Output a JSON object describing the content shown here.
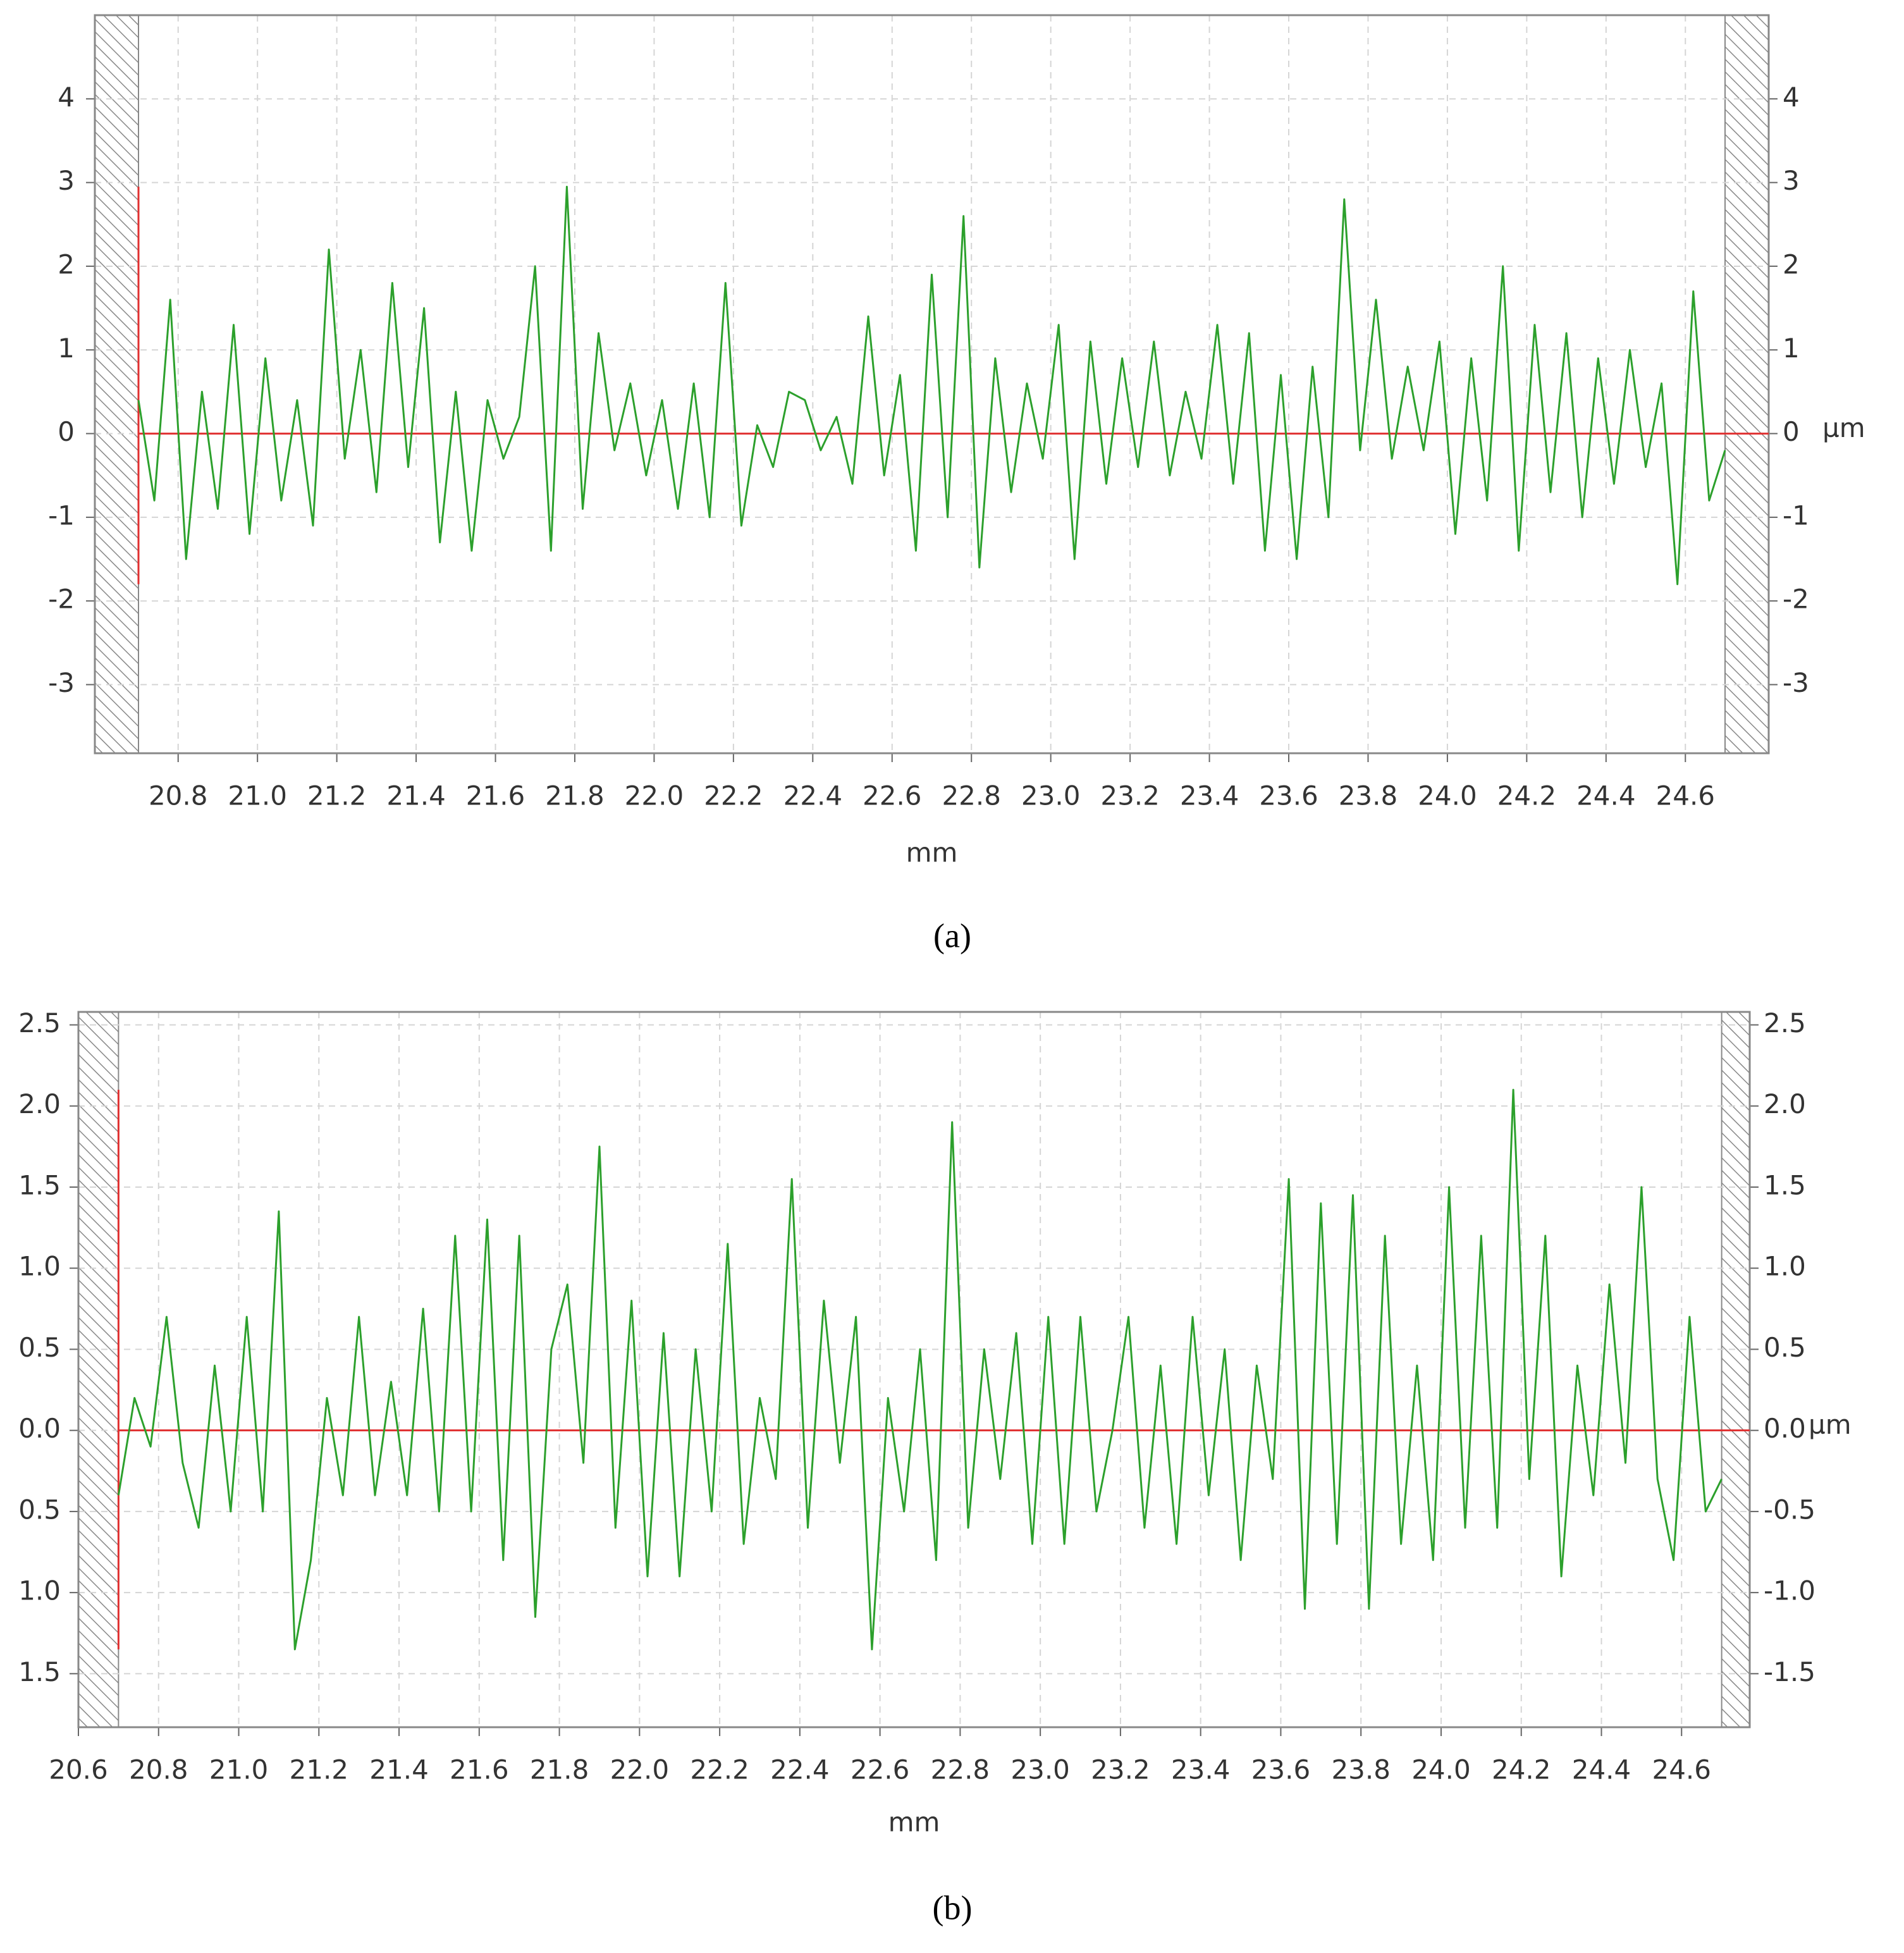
{
  "chart_data": [
    {
      "type": "line",
      "caption": "(a)",
      "xlabel": "mm",
      "y2label": "µm",
      "grid": true,
      "reference_color": "#e03030",
      "xlim": [
        20.59,
        24.81
      ],
      "ylim": [
        -3.82,
        5.0
      ],
      "y2lim": [
        -3.82,
        5.0
      ],
      "xticks": [
        20.8,
        {
          "value": 21,
          "label": "21.0"
        },
        21.2,
        21.4,
        21.6,
        21.8,
        {
          "value": 22,
          "label": "22.0"
        },
        22.2,
        22.4,
        22.6,
        22.8,
        {
          "value": 23,
          "label": "23.0"
        },
        23.2,
        23.4,
        23.6,
        23.8,
        {
          "value": 24,
          "label": "24.0"
        },
        24.2,
        24.4,
        24.6
      ],
      "yticks": [
        -3,
        -2,
        -1,
        0,
        1,
        2,
        3,
        4
      ],
      "y2ticks": [
        -3,
        -2,
        -1,
        0,
        1,
        2,
        3,
        4
      ],
      "x": [
        20.7,
        20.74,
        20.78,
        20.82,
        20.86,
        20.9,
        20.94,
        20.98,
        21.02,
        21.06,
        21.1,
        21.14,
        21.18,
        21.22,
        21.26,
        21.3,
        21.34,
        21.38,
        21.42,
        21.46,
        21.5,
        21.54,
        21.58,
        21.62,
        21.66,
        21.7,
        21.74,
        21.78,
        21.82,
        21.86,
        21.9,
        21.94,
        21.98,
        22.02,
        22.06,
        22.1,
        22.14,
        22.18,
        22.22,
        22.26,
        22.3,
        22.34,
        22.38,
        22.42,
        22.46,
        22.5,
        22.54,
        22.58,
        22.62,
        22.66,
        22.7,
        22.74,
        22.78,
        22.82,
        22.86,
        22.9,
        22.94,
        22.98,
        23.02,
        23.06,
        23.1,
        23.14,
        23.18,
        23.22,
        23.26,
        23.3,
        23.34,
        23.38,
        23.42,
        23.46,
        23.5,
        23.54,
        23.58,
        23.62,
        23.66,
        23.7,
        23.74,
        23.78,
        23.82,
        23.86,
        23.9,
        23.94,
        23.98,
        24.02,
        24.06,
        24.1,
        24.14,
        24.18,
        24.22,
        24.26,
        24.3,
        24.34,
        24.38,
        24.42,
        24.46,
        24.5,
        24.54,
        24.58,
        24.62,
        24.66,
        24.7
      ],
      "series": [
        {
          "color": "#2ca02c",
          "values": [
            0.4,
            -0.8,
            1.6,
            -1.5,
            0.5,
            -0.9,
            1.3,
            -1.2,
            0.9,
            -0.8,
            0.4,
            -1.1,
            2.2,
            -0.3,
            1.0,
            -0.7,
            1.8,
            -0.4,
            1.5,
            -1.3,
            0.5,
            -1.4,
            0.4,
            -0.3,
            0.2,
            2.0,
            -1.4,
            2.95,
            -0.9,
            1.2,
            -0.2,
            0.6,
            -0.5,
            0.4,
            -0.9,
            0.6,
            -1.0,
            1.8,
            -1.1,
            0.1,
            -0.4,
            0.5,
            0.4,
            -0.2,
            0.2,
            -0.6,
            1.4,
            -0.5,
            0.7,
            -1.4,
            1.9,
            -1.0,
            2.6,
            -1.6,
            0.9,
            -0.7,
            0.6,
            -0.3,
            1.3,
            -1.5,
            1.1,
            -0.6,
            0.9,
            -0.4,
            1.1,
            -0.5,
            0.5,
            -0.3,
            1.3,
            -0.6,
            1.2,
            -1.4,
            0.7,
            -1.5,
            0.8,
            -1.0,
            2.8,
            -0.2,
            1.6,
            -0.3,
            0.8,
            -0.2,
            1.1,
            -1.2,
            0.9,
            -0.8,
            2.0,
            -1.4,
            1.3,
            -0.7,
            1.2,
            -1.0,
            0.9,
            -0.6,
            1.0,
            -0.4,
            0.6,
            -1.8,
            1.7,
            -0.8,
            -0.2
          ]
        }
      ]
    },
    {
      "type": "line",
      "caption": "(b)",
      "xlabel": "mm",
      "y2label": "µm",
      "grid": true,
      "reference_color": "#e03030",
      "xlim": [
        20.6,
        24.77
      ],
      "ylim": [
        -1.83,
        2.58
      ],
      "y2lim": [
        -1.83,
        2.58
      ],
      "xticks": [
        20.6,
        20.8,
        {
          "value": 21,
          "label": "21.0"
        },
        21.2,
        21.4,
        21.6,
        21.8,
        {
          "value": 22,
          "label": "22.0"
        },
        22.2,
        22.4,
        22.6,
        22.8,
        {
          "value": 23,
          "label": "23.0"
        },
        23.2,
        23.4,
        23.6,
        23.8,
        {
          "value": 24,
          "label": "24.0"
        },
        24.2,
        24.4,
        24.6
      ],
      "yticks": [
        {
          "value": -1.5,
          "label": "1.5"
        },
        {
          "value": -1,
          "label": "1.0"
        },
        {
          "value": -0.5,
          "label": "0.5"
        },
        {
          "value": 0,
          "label": "0.0"
        },
        0.5,
        {
          "value": 1,
          "label": "1.0"
        },
        1.5,
        {
          "value": 2,
          "label": "2.0"
        },
        2.5
      ],
      "y2ticks": [
        -1.5,
        {
          "value": -1,
          "label": "-1.0"
        },
        -0.5,
        {
          "value": 0,
          "label": "0.0"
        },
        0.5,
        {
          "value": 1,
          "label": "1.0"
        },
        1.5,
        {
          "value": 2,
          "label": "2.0"
        },
        2.5
      ],
      "x": [
        20.7,
        20.74,
        20.78,
        20.82,
        20.86,
        20.9,
        20.94,
        20.98,
        21.02,
        21.06,
        21.1,
        21.14,
        21.18,
        21.22,
        21.26,
        21.3,
        21.34,
        21.38,
        21.42,
        21.46,
        21.5,
        21.54,
        21.58,
        21.62,
        21.66,
        21.7,
        21.74,
        21.78,
        21.82,
        21.86,
        21.9,
        21.94,
        21.98,
        22.02,
        22.06,
        22.1,
        22.14,
        22.18,
        22.22,
        22.26,
        22.3,
        22.34,
        22.38,
        22.42,
        22.46,
        22.5,
        22.54,
        22.58,
        22.62,
        22.66,
        22.7,
        22.74,
        22.78,
        22.82,
        22.86,
        22.9,
        22.94,
        22.98,
        23.02,
        23.06,
        23.1,
        23.14,
        23.18,
        23.22,
        23.26,
        23.3,
        23.34,
        23.38,
        23.42,
        23.46,
        23.5,
        23.54,
        23.58,
        23.62,
        23.66,
        23.7,
        23.74,
        23.78,
        23.82,
        23.86,
        23.9,
        23.94,
        23.98,
        24.02,
        24.06,
        24.1,
        24.14,
        24.18,
        24.22,
        24.26,
        24.3,
        24.34,
        24.38,
        24.42,
        24.46,
        24.5,
        24.54,
        24.58,
        24.62,
        24.66,
        24.7
      ],
      "series": [
        {
          "color": "#2ca02c",
          "values": [
            -0.4,
            0.2,
            -0.1,
            0.7,
            -0.2,
            -0.6,
            0.4,
            -0.5,
            0.7,
            -0.5,
            1.35,
            -1.35,
            -0.8,
            0.2,
            -0.4,
            0.7,
            -0.4,
            0.3,
            -0.4,
            0.75,
            -0.5,
            1.2,
            -0.5,
            1.3,
            -0.8,
            1.2,
            -1.15,
            0.5,
            0.9,
            -0.2,
            1.75,
            -0.6,
            0.8,
            -0.9,
            0.6,
            -0.9,
            0.5,
            -0.5,
            1.15,
            -0.7,
            0.2,
            -0.3,
            1.55,
            -0.6,
            0.8,
            -0.2,
            0.7,
            -1.35,
            0.2,
            -0.5,
            0.5,
            -0.8,
            1.9,
            -0.6,
            0.5,
            -0.3,
            0.6,
            -0.7,
            0.7,
            -0.7,
            0.7,
            -0.5,
            0.0,
            0.7,
            -0.6,
            0.4,
            -0.7,
            0.7,
            -0.4,
            0.5,
            -0.8,
            0.4,
            -0.3,
            1.55,
            -1.1,
            1.4,
            -0.7,
            1.45,
            -1.1,
            1.2,
            -0.7,
            0.4,
            -0.8,
            1.5,
            -0.6,
            1.2,
            -0.6,
            2.1,
            -0.3,
            1.2,
            -0.9,
            0.4,
            -0.4,
            0.9,
            -0.2,
            1.5,
            -0.3,
            -0.8,
            0.7,
            -0.5,
            -0.3
          ]
        }
      ]
    }
  ]
}
